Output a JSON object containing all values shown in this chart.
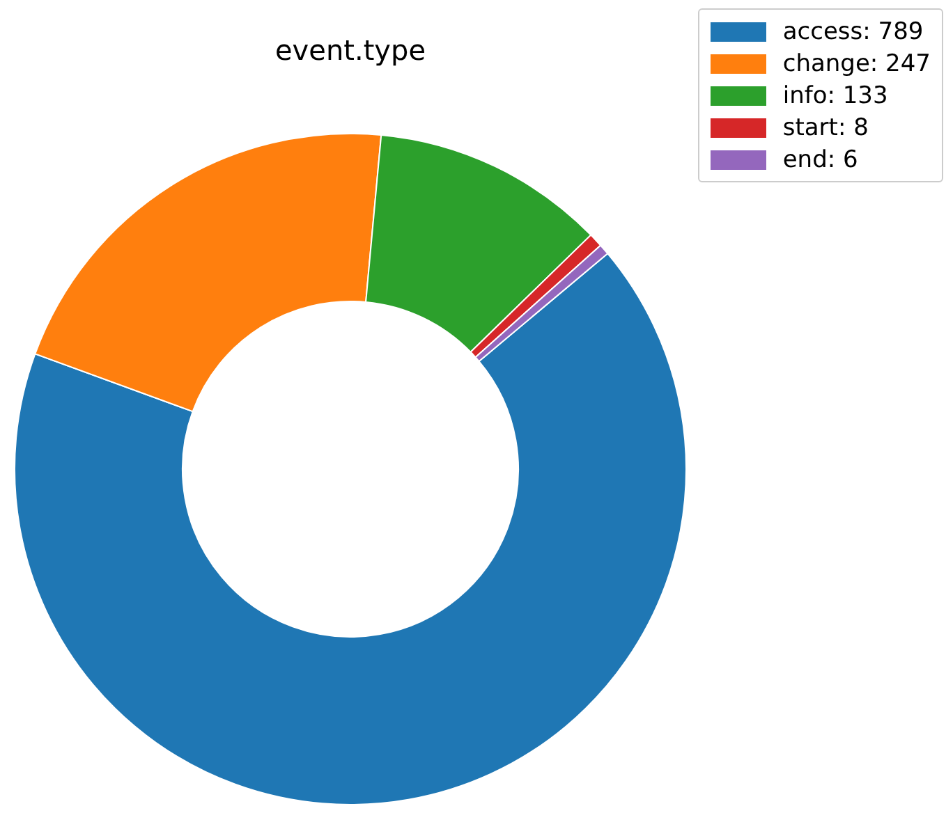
{
  "chart_data": {
    "type": "donut",
    "title": "event.type",
    "categories": [
      "access: 789",
      "change: 247",
      "info: 133",
      "start: 8",
      "end: 6"
    ],
    "values": [
      789,
      247,
      133,
      8,
      6
    ],
    "colors": [
      "#1f77b4",
      "#ff7f0e",
      "#2ca02c",
      "#d62728",
      "#9467bd"
    ],
    "legend": "top right"
  }
}
